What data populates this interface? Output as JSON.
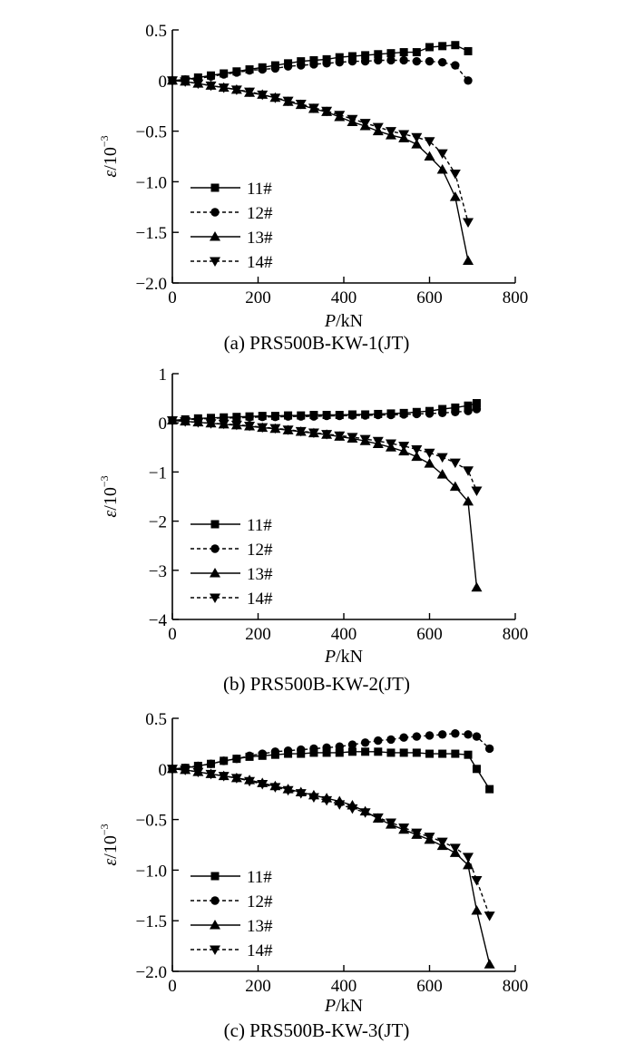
{
  "figure": {
    "chart_data": [
      {
        "type": "line",
        "title": "(a) PRS500B-KW-1(JT)",
        "xlabel": {
          "sym": "P",
          "unit": "/kN"
        },
        "ylabel": {
          "sym": "ε",
          "unit": "/10",
          "exp": "−3"
        },
        "xlim": [
          0,
          800
        ],
        "ylim": [
          -2.0,
          0.5
        ],
        "xticks": [
          0,
          200,
          400,
          600,
          800
        ],
        "xtick_labels": [
          "0",
          "200",
          "400",
          "600",
          "800"
        ],
        "yticks": [
          0.5,
          0,
          -0.5,
          -1.0,
          -1.5,
          -2.0
        ],
        "ytick_labels": [
          "0.5",
          "0",
          "−0.5",
          "−1.0",
          "−1.5",
          "−2.0"
        ],
        "grid": false,
        "legend_position": "bottom-left",
        "series": [
          {
            "name": "11#",
            "marker": "square",
            "dash": "solid",
            "x": [
              0,
              30,
              60,
              90,
              120,
              150,
              180,
              210,
              240,
              270,
              300,
              330,
              360,
              390,
              420,
              450,
              480,
              510,
              540,
              570,
              600,
              630,
              660,
              690
            ],
            "y": [
              0,
              0.01,
              0.03,
              0.05,
              0.07,
              0.09,
              0.11,
              0.13,
              0.15,
              0.17,
              0.19,
              0.2,
              0.21,
              0.23,
              0.24,
              0.25,
              0.26,
              0.27,
              0.28,
              0.28,
              0.33,
              0.34,
              0.35,
              0.29
            ]
          },
          {
            "name": "12#",
            "marker": "circle",
            "dash": "dashed",
            "x": [
              0,
              30,
              60,
              90,
              120,
              150,
              180,
              210,
              240,
              270,
              300,
              330,
              360,
              390,
              420,
              450,
              480,
              510,
              540,
              570,
              600,
              630,
              660,
              690
            ],
            "y": [
              0,
              0.01,
              0.02,
              0.04,
              0.06,
              0.08,
              0.1,
              0.11,
              0.12,
              0.14,
              0.15,
              0.16,
              0.17,
              0.18,
              0.19,
              0.19,
              0.2,
              0.2,
              0.2,
              0.19,
              0.19,
              0.18,
              0.15,
              0.0
            ]
          },
          {
            "name": "13#",
            "marker": "triangle-up",
            "dash": "solid",
            "x": [
              0,
              30,
              60,
              90,
              120,
              150,
              180,
              210,
              240,
              270,
              300,
              330,
              360,
              390,
              420,
              450,
              480,
              510,
              540,
              570,
              600,
              630,
              660,
              690
            ],
            "y": [
              0,
              -0.01,
              -0.03,
              -0.05,
              -0.07,
              -0.09,
              -0.12,
              -0.14,
              -0.17,
              -0.21,
              -0.24,
              -0.28,
              -0.31,
              -0.36,
              -0.41,
              -0.45,
              -0.5,
              -0.54,
              -0.57,
              -0.63,
              -0.75,
              -0.88,
              -1.15,
              -1.78
            ]
          },
          {
            "name": "14#",
            "marker": "triangle-down",
            "dash": "dashed",
            "x": [
              0,
              30,
              60,
              90,
              120,
              150,
              180,
              210,
              240,
              270,
              300,
              330,
              360,
              390,
              420,
              450,
              480,
              510,
              540,
              570,
              600,
              630,
              660,
              690
            ],
            "y": [
              0,
              -0.01,
              -0.03,
              -0.05,
              -0.07,
              -0.09,
              -0.11,
              -0.14,
              -0.17,
              -0.2,
              -0.23,
              -0.27,
              -0.3,
              -0.34,
              -0.38,
              -0.42,
              -0.46,
              -0.5,
              -0.53,
              -0.56,
              -0.6,
              -0.72,
              -0.92,
              -1.4
            ]
          }
        ]
      },
      {
        "type": "line",
        "title": "(b) PRS500B-KW-2(JT)",
        "xlabel": {
          "sym": "P",
          "unit": "/kN"
        },
        "ylabel": {
          "sym": "ε",
          "unit": "/10",
          "exp": "−3"
        },
        "xlim": [
          0,
          800
        ],
        "ylim": [
          -4,
          1
        ],
        "xticks": [
          0,
          200,
          400,
          600,
          800
        ],
        "xtick_labels": [
          "0",
          "200",
          "400",
          "600",
          "800"
        ],
        "yticks": [
          1,
          0,
          -1,
          -2,
          -3,
          -4
        ],
        "ytick_labels": [
          "1",
          "0",
          "−1",
          "−2",
          "−3",
          "−4"
        ],
        "grid": false,
        "legend_position": "bottom-left",
        "series": [
          {
            "name": "11#",
            "marker": "square",
            "dash": "solid",
            "x": [
              0,
              30,
              60,
              90,
              120,
              150,
              180,
              210,
              240,
              270,
              300,
              330,
              360,
              390,
              420,
              450,
              480,
              510,
              540,
              570,
              600,
              630,
              660,
              690,
              710
            ],
            "y": [
              0.05,
              0.07,
              0.09,
              0.1,
              0.11,
              0.12,
              0.13,
              0.14,
              0.14,
              0.15,
              0.15,
              0.16,
              0.16,
              0.16,
              0.17,
              0.17,
              0.18,
              0.19,
              0.2,
              0.22,
              0.24,
              0.28,
              0.31,
              0.35,
              0.4
            ]
          },
          {
            "name": "12#",
            "marker": "circle",
            "dash": "dashed",
            "x": [
              0,
              30,
              60,
              90,
              120,
              150,
              180,
              210,
              240,
              270,
              300,
              330,
              360,
              390,
              420,
              450,
              480,
              510,
              540,
              570,
              600,
              630,
              660,
              690,
              710
            ],
            "y": [
              0.05,
              0.06,
              0.08,
              0.09,
              0.1,
              0.1,
              0.11,
              0.12,
              0.12,
              0.13,
              0.13,
              0.13,
              0.14,
              0.14,
              0.15,
              0.15,
              0.16,
              0.16,
              0.17,
              0.18,
              0.19,
              0.2,
              0.22,
              0.24,
              0.28
            ]
          },
          {
            "name": "13#",
            "marker": "triangle-up",
            "dash": "solid",
            "x": [
              0,
              30,
              60,
              90,
              120,
              150,
              180,
              210,
              240,
              270,
              300,
              330,
              360,
              390,
              420,
              450,
              480,
              510,
              540,
              570,
              600,
              630,
              660,
              690,
              710
            ],
            "y": [
              0.05,
              0.03,
              0.01,
              -0.01,
              -0.03,
              -0.05,
              -0.07,
              -0.1,
              -0.12,
              -0.15,
              -0.18,
              -0.21,
              -0.24,
              -0.28,
              -0.32,
              -0.37,
              -0.43,
              -0.5,
              -0.58,
              -0.69,
              -0.83,
              -1.05,
              -1.3,
              -1.6,
              -3.35
            ]
          },
          {
            "name": "14#",
            "marker": "triangle-down",
            "dash": "dashed",
            "x": [
              0,
              30,
              60,
              90,
              120,
              150,
              180,
              210,
              240,
              270,
              300,
              330,
              360,
              390,
              420,
              450,
              480,
              510,
              540,
              570,
              600,
              630,
              660,
              690,
              710
            ],
            "y": [
              0.05,
              0.03,
              0.01,
              -0.01,
              -0.02,
              -0.04,
              -0.06,
              -0.09,
              -0.11,
              -0.14,
              -0.17,
              -0.2,
              -0.23,
              -0.26,
              -0.29,
              -0.33,
              -0.37,
              -0.42,
              -0.47,
              -0.54,
              -0.61,
              -0.7,
              -0.81,
              -0.97,
              -1.38
            ]
          }
        ]
      },
      {
        "type": "line",
        "title": "(c) PRS500B-KW-3(JT)",
        "xlabel": {
          "sym": "P",
          "unit": "/kN"
        },
        "ylabel": {
          "sym": "ε",
          "unit": "/10",
          "exp": "−3"
        },
        "xlim": [
          0,
          800
        ],
        "ylim": [
          -2.0,
          0.5
        ],
        "xticks": [
          0,
          200,
          400,
          600,
          800
        ],
        "xtick_labels": [
          "0",
          "200",
          "400",
          "600",
          "800"
        ],
        "yticks": [
          0.5,
          0,
          -0.5,
          -1.0,
          -1.5,
          -2.0
        ],
        "ytick_labels": [
          "0.5",
          "0",
          "−0.5",
          "−1.0",
          "−1.5",
          "−2.0"
        ],
        "grid": false,
        "legend_position": "bottom-left",
        "series": [
          {
            "name": "11#",
            "marker": "square",
            "dash": "solid",
            "x": [
              0,
              30,
              60,
              90,
              120,
              150,
              180,
              210,
              240,
              270,
              300,
              330,
              360,
              390,
              420,
              450,
              480,
              510,
              540,
              570,
              600,
              630,
              660,
              690,
              710,
              740
            ],
            "y": [
              0,
              0.01,
              0.03,
              0.05,
              0.08,
              0.1,
              0.12,
              0.13,
              0.14,
              0.15,
              0.15,
              0.16,
              0.16,
              0.16,
              0.17,
              0.17,
              0.17,
              0.16,
              0.16,
              0.16,
              0.15,
              0.15,
              0.15,
              0.14,
              0.0,
              -0.2
            ]
          },
          {
            "name": "12#",
            "marker": "circle",
            "dash": "dashed",
            "x": [
              0,
              30,
              60,
              90,
              120,
              150,
              180,
              210,
              240,
              270,
              300,
              330,
              360,
              390,
              420,
              450,
              480,
              510,
              540,
              570,
              600,
              630,
              660,
              690,
              710,
              740
            ],
            "y": [
              0,
              0.01,
              0.03,
              0.05,
              0.08,
              0.1,
              0.13,
              0.15,
              0.17,
              0.18,
              0.19,
              0.2,
              0.21,
              0.22,
              0.24,
              0.26,
              0.28,
              0.29,
              0.31,
              0.32,
              0.33,
              0.34,
              0.35,
              0.34,
              0.32,
              0.2
            ]
          },
          {
            "name": "13#",
            "marker": "triangle-up",
            "dash": "solid",
            "x": [
              0,
              30,
              60,
              90,
              120,
              150,
              180,
              210,
              240,
              270,
              300,
              330,
              360,
              390,
              420,
              450,
              480,
              510,
              540,
              570,
              600,
              630,
              660,
              690,
              710,
              740
            ],
            "y": [
              0,
              -0.01,
              -0.03,
              -0.05,
              -0.07,
              -0.09,
              -0.11,
              -0.14,
              -0.17,
              -0.2,
              -0.23,
              -0.26,
              -0.29,
              -0.32,
              -0.36,
              -0.42,
              -0.49,
              -0.55,
              -0.6,
              -0.65,
              -0.7,
              -0.76,
              -0.83,
              -0.95,
              -1.4,
              -1.93
            ]
          },
          {
            "name": "14#",
            "marker": "triangle-down",
            "dash": "dashed",
            "x": [
              0,
              30,
              60,
              90,
              120,
              150,
              180,
              210,
              240,
              270,
              300,
              330,
              360,
              390,
              420,
              450,
              480,
              510,
              540,
              570,
              600,
              630,
              660,
              690,
              710,
              740
            ],
            "y": [
              0,
              -0.01,
              -0.03,
              -0.05,
              -0.07,
              -0.09,
              -0.12,
              -0.15,
              -0.18,
              -0.21,
              -0.24,
              -0.28,
              -0.31,
              -0.35,
              -0.39,
              -0.43,
              -0.48,
              -0.53,
              -0.58,
              -0.63,
              -0.67,
              -0.72,
              -0.78,
              -0.87,
              -1.1,
              -1.45
            ]
          }
        ]
      }
    ]
  }
}
